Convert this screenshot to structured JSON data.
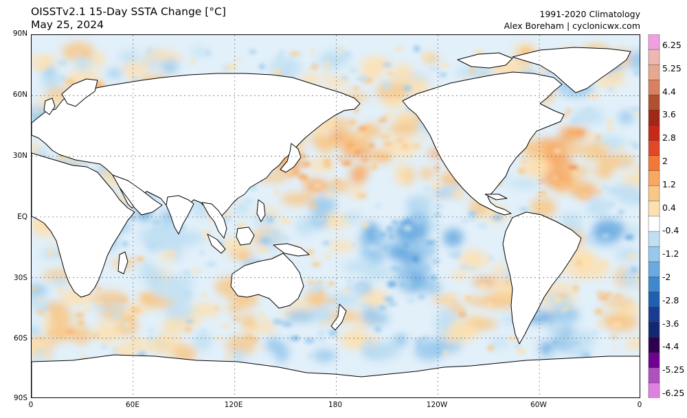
{
  "header": {
    "title": "OISSTv2.1 15-Day SSTA Change [°C]",
    "date": "May 25, 2024",
    "climatology": "1991-2020 Climatology",
    "credit": "Alex Boreham | cyclonicwx.com"
  },
  "map": {
    "lat_labels": [
      "90N",
      "60N",
      "30N",
      "EQ",
      "30S",
      "60S",
      "90S"
    ],
    "lon_labels": [
      "0",
      "60E",
      "120E",
      "180",
      "120W",
      "60W",
      "0"
    ],
    "land_color": "#ffffff",
    "coast_color": "#000000",
    "grid_style": "dotted"
  },
  "colorbar": {
    "labels": [
      "6.25",
      "5.25",
      "4.4",
      "3.6",
      "2.8",
      "2",
      "1.2",
      "0.4",
      "-0.4",
      "-1.2",
      "-2",
      "-2.8",
      "-3.6",
      "-4.4",
      "-5.25",
      "-6.25"
    ],
    "colors": [
      "#f0a0e0",
      "#ecb8b0",
      "#e8a890",
      "#d88060",
      "#b05030",
      "#a02818",
      "#c82818",
      "#e04828",
      "#f07838",
      "#f8a860",
      "#f8c888",
      "#fde0b0",
      "#ffffff",
      "#c0dff2",
      "#98c8ec",
      "#6aaae0",
      "#3f88cc",
      "#2060b0",
      "#1a3c90",
      "#122870",
      "#300050",
      "#700090",
      "#b050c0",
      "#e080e0"
    ]
  }
}
